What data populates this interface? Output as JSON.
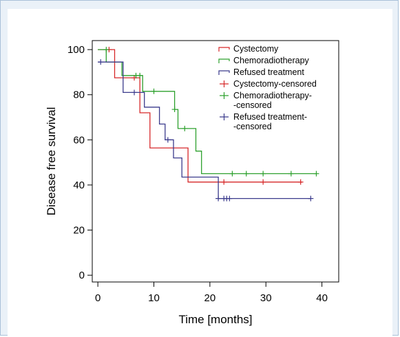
{
  "chart_data": {
    "type": "line",
    "subtype": "kaplan-meier step",
    "xlabel": "Time [months]",
    "ylabel": "Disease free survival",
    "xlim": [
      -1,
      43
    ],
    "ylim": [
      -3,
      104
    ],
    "xticks": [
      0,
      10,
      20,
      30,
      40
    ],
    "yticks": [
      0,
      20,
      40,
      60,
      80,
      100
    ],
    "grid": false,
    "legend_position": "top-right inside",
    "series": [
      {
        "name": "Cystectomy",
        "color": "#d62728",
        "steps": [
          [
            0,
            100
          ],
          [
            3,
            100
          ],
          [
            3,
            87.5
          ],
          [
            7.5,
            87.5
          ],
          [
            7.5,
            72
          ],
          [
            9.3,
            72
          ],
          [
            9.3,
            56.4
          ],
          [
            16.1,
            56.4
          ],
          [
            16.1,
            41.3
          ],
          [
            36.5,
            41.3
          ]
        ],
        "censored": [
          [
            2,
            100
          ],
          [
            6.5,
            87.5
          ],
          [
            22.5,
            41.3
          ],
          [
            29.5,
            41.3
          ],
          [
            36.2,
            41.3
          ]
        ]
      },
      {
        "name": "Chemoradiotherapy",
        "color": "#2ca02c",
        "steps": [
          [
            0,
            100
          ],
          [
            1.5,
            100
          ],
          [
            1.5,
            94.5
          ],
          [
            4.3,
            94.5
          ],
          [
            4.3,
            88.5
          ],
          [
            8,
            88.5
          ],
          [
            8,
            81.5
          ],
          [
            13.7,
            81.5
          ],
          [
            13.7,
            73.5
          ],
          [
            14.3,
            73.5
          ],
          [
            14.3,
            65
          ],
          [
            17.5,
            65
          ],
          [
            17.5,
            55
          ],
          [
            18.5,
            55
          ],
          [
            18.5,
            45
          ],
          [
            39,
            45
          ]
        ],
        "censored": [
          [
            1.5,
            100
          ],
          [
            6.8,
            88.5
          ],
          [
            7.5,
            88.5
          ],
          [
            10,
            81.5
          ],
          [
            13.7,
            73.5
          ],
          [
            15.5,
            65
          ],
          [
            24,
            45
          ],
          [
            26.5,
            45
          ],
          [
            29.5,
            45
          ],
          [
            34.5,
            45
          ],
          [
            39,
            45
          ]
        ]
      },
      {
        "name": "Refused treatment",
        "color": "#3a3a8c",
        "steps": [
          [
            0,
            94.5
          ],
          [
            4.5,
            94.5
          ],
          [
            4.5,
            81
          ],
          [
            8.3,
            81
          ],
          [
            8.3,
            74.5
          ],
          [
            11,
            74.5
          ],
          [
            11,
            67
          ],
          [
            12,
            67
          ],
          [
            12,
            60
          ],
          [
            13.5,
            60
          ],
          [
            13.5,
            52
          ],
          [
            15,
            52
          ],
          [
            15,
            43.5
          ],
          [
            21.5,
            43.5
          ],
          [
            21.5,
            34
          ],
          [
            38,
            34
          ]
        ],
        "censored": [
          [
            0.5,
            94.5
          ],
          [
            6.5,
            81
          ],
          [
            12.5,
            60
          ],
          [
            21.5,
            34
          ],
          [
            22.5,
            34
          ],
          [
            23,
            34
          ],
          [
            23.5,
            34
          ],
          [
            38,
            34
          ]
        ]
      }
    ],
    "legend": [
      {
        "lines": [
          "Cystectomy"
        ],
        "color": "#d62728",
        "marker": "step"
      },
      {
        "lines": [
          "Chemoradiotherapy"
        ],
        "color": "#2ca02c",
        "marker": "step"
      },
      {
        "lines": [
          "Refused treatment"
        ],
        "color": "#3a3a8c",
        "marker": "step"
      },
      {
        "lines": [
          "Cystectomy-censored"
        ],
        "color": "#d62728",
        "marker": "plus"
      },
      {
        "lines": [
          "Chemoradiotherapy-",
          "-censored"
        ],
        "color": "#2ca02c",
        "marker": "plus"
      },
      {
        "lines": [
          "Refused treatment-",
          "-censored"
        ],
        "color": "#3a3a8c",
        "marker": "plus"
      }
    ]
  }
}
